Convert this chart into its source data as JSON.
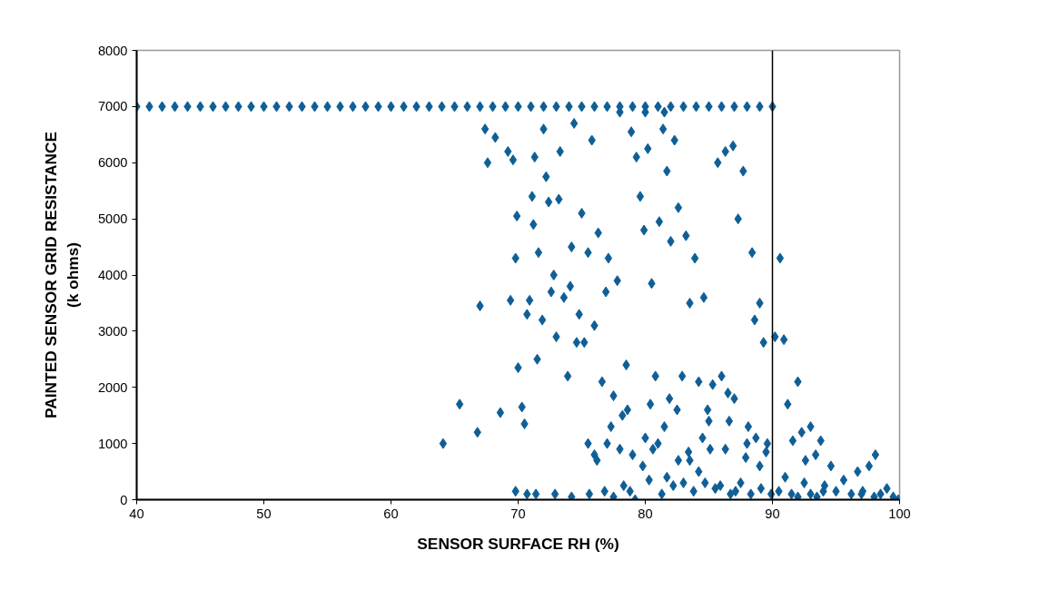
{
  "chart_data": {
    "type": "scatter",
    "xlabel": "SENSOR SURFACE RH (%)",
    "ylabel": "PAINTED SENSOR GRID RESISTANCE\n(k ohms)",
    "xlim": [
      40,
      100
    ],
    "xticks": [
      40,
      50,
      60,
      70,
      80,
      90,
      100
    ],
    "ylim": [
      0,
      8000
    ],
    "yticks": [
      0,
      1000,
      2000,
      3000,
      4000,
      5000,
      6000,
      7000,
      8000
    ],
    "grid": false,
    "marker": "diamond",
    "series": [
      {
        "color": "#0f5f96",
        "x": [
          40,
          41,
          42,
          43,
          44,
          45,
          46,
          47,
          48,
          49,
          50,
          51,
          52,
          53,
          54,
          55,
          56,
          57,
          58,
          59,
          60,
          61,
          62,
          63,
          64,
          65,
          66,
          67,
          68,
          69,
          70,
          71,
          72,
          73,
          74,
          75,
          76,
          77,
          78,
          79,
          80,
          81,
          82,
          83,
          84,
          85,
          86,
          87,
          88,
          89,
          90,
          78,
          80,
          81.5,
          64.1,
          65.4,
          66.8,
          67.0,
          67.4,
          67.6,
          68.2,
          68.6,
          69.2,
          69.4,
          69.6,
          69.8,
          69.9,
          70.0,
          70.3,
          70.5,
          70.7,
          70.9,
          71.1,
          71.2,
          71.3,
          71.5,
          71.6,
          71.9,
          72.0,
          72.2,
          72.4,
          72.6,
          72.8,
          73.0,
          73.2,
          73.3,
          73.6,
          73.9,
          74.1,
          74.2,
          74.4,
          74.6,
          74.8,
          75.0,
          75.2,
          75.5,
          75.8,
          76.0,
          76.3,
          76.6,
          76.9,
          77.1,
          77.5,
          77.8,
          78.2,
          78.5,
          78.9,
          79.3,
          79.6,
          79.9,
          80.2,
          80.5,
          80.8,
          81.1,
          81.4,
          81.7,
          82.0,
          82.3,
          82.6,
          82.9,
          83.2,
          83.5,
          83.9,
          84.2,
          84.6,
          84.9,
          85.3,
          85.7,
          86.0,
          86.3,
          86.6,
          86.9,
          87.3,
          87.7,
          88.1,
          88.4,
          88.6,
          89.0,
          89.3,
          89.6,
          90.2,
          90.6,
          90.9,
          91.2,
          91.6,
          92.0,
          92.3,
          92.6,
          93.0,
          93.4,
          93.8,
          94.1,
          94.6,
          95.0,
          95.6,
          96.2,
          96.7,
          97.1,
          97.6,
          98.1,
          98.5,
          99.0,
          99.5,
          99.9,
          69.8,
          70.7,
          71.4,
          72.9,
          74.2,
          75.6,
          76.8,
          77.5,
          78.3,
          78.8,
          79.2,
          79.8,
          80.3,
          80.6,
          81.0,
          81.3,
          81.7,
          82.2,
          82.6,
          83.0,
          83.4,
          83.8,
          84.2,
          84.7,
          85.1,
          85.5,
          85.9,
          86.3,
          86.7,
          87.1,
          87.5,
          87.9,
          88.3,
          88.7,
          89.1,
          89.5,
          89.9,
          90.5,
          91.0,
          91.5,
          92.0,
          92.5,
          93.0,
          93.5,
          94.0,
          97.0,
          98.0,
          76.2,
          77.0,
          78.0,
          79.0,
          80.0,
          81.5,
          82.5,
          83.5,
          84.5,
          85.0,
          86.5,
          87.0,
          88.0,
          89.0,
          75.5,
          76.0,
          77.3,
          78.6,
          80.4,
          81.9
        ],
        "values": [
          7000,
          7000,
          7000,
          7000,
          7000,
          7000,
          7000,
          7000,
          7000,
          7000,
          7000,
          7000,
          7000,
          7000,
          7000,
          7000,
          7000,
          7000,
          7000,
          7000,
          7000,
          7000,
          7000,
          7000,
          7000,
          7000,
          7000,
          7000,
          7000,
          7000,
          7000,
          7000,
          7000,
          7000,
          7000,
          7000,
          7000,
          7000,
          7000,
          7000,
          7000,
          7000,
          7000,
          7000,
          7000,
          7000,
          7000,
          7000,
          7000,
          7000,
          7000,
          6900,
          6900,
          6900,
          1000,
          1700,
          1200,
          3450,
          6600,
          6000,
          6450,
          1550,
          6200,
          3550,
          6050,
          4300,
          5050,
          2350,
          1650,
          1350,
          3300,
          3550,
          5400,
          4900,
          6100,
          2500,
          4400,
          3200,
          6600,
          5750,
          5300,
          3700,
          4000,
          2900,
          5350,
          6200,
          3600,
          2200,
          3800,
          4500,
          6700,
          2800,
          3300,
          5100,
          2800,
          4400,
          6400,
          3100,
          4750,
          2100,
          3700,
          4300,
          1850,
          3900,
          1500,
          2400,
          6550,
          6100,
          5400,
          4800,
          6250,
          3850,
          2200,
          4950,
          6600,
          5850,
          4600,
          6400,
          5200,
          2200,
          4700,
          3500,
          4300,
          2100,
          3600,
          1600,
          2050,
          6000,
          2200,
          6200,
          1400,
          6300,
          5000,
          5850,
          1300,
          4400,
          3200,
          3500,
          2800,
          1000,
          2900,
          4300,
          2850,
          1700,
          1050,
          2100,
          1200,
          700,
          1300,
          800,
          1050,
          250,
          600,
          150,
          350,
          100,
          500,
          150,
          600,
          800,
          100,
          200,
          50,
          0,
          150,
          100,
          100,
          100,
          50,
          100,
          150,
          50,
          250,
          150,
          0,
          600,
          350,
          900,
          1000,
          100,
          400,
          250,
          700,
          300,
          850,
          150,
          500,
          300,
          900,
          200,
          250,
          900,
          100,
          150,
          300,
          750,
          100,
          1100,
          200,
          850,
          100,
          150,
          400,
          100,
          50,
          300,
          100,
          50,
          150,
          100,
          50,
          700,
          1000,
          900,
          800,
          1100,
          1300,
          1600,
          700,
          1100,
          1400,
          1900,
          1800,
          1000,
          600,
          1000,
          800,
          1300,
          1600,
          1700,
          1800
        ]
      }
    ],
    "ref_lines": [
      {
        "axis": "x",
        "value": 90,
        "color": "#000000"
      }
    ]
  }
}
